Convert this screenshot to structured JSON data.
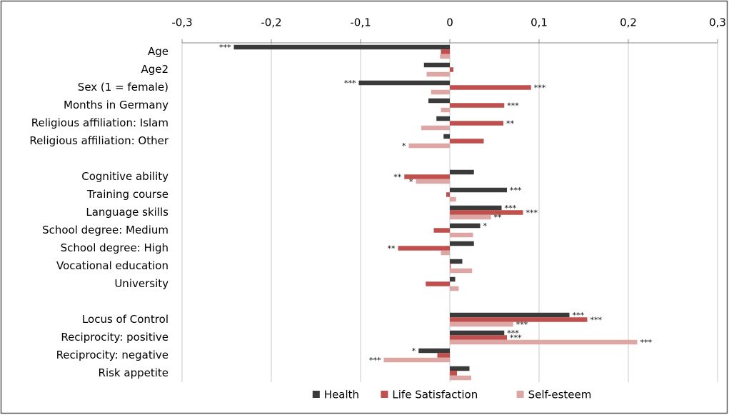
{
  "chart_data": {
    "type": "bar",
    "orientation": "horizontal",
    "categories": [
      "Age",
      "Age2",
      "Sex (1 = female)",
      "Months in Germany",
      "Religious affiliation: Islam",
      "Religious affiliation: Other",
      null,
      "Cognitive ability",
      "Training course",
      "Language skills",
      "School degree: Medium",
      "School degree: High",
      "Vocational education",
      "University",
      null,
      "Locus of Control",
      "Reciprocity: positive",
      "Reciprocity: negative",
      "Risk appetite"
    ],
    "series": [
      {
        "name": "Health",
        "color": "#3a3a3a",
        "values": [
          -0.242,
          -0.029,
          -0.102,
          -0.024,
          -0.015,
          -0.007,
          null,
          0.027,
          0.064,
          0.058,
          0.034,
          0.027,
          0.014,
          0.006,
          null,
          0.134,
          0.061,
          -0.035,
          0.022
        ],
        "annotations": [
          "***",
          null,
          "***",
          null,
          null,
          null,
          null,
          null,
          "***",
          "***",
          "*",
          null,
          null,
          null,
          null,
          "***",
          "***",
          "*",
          null
        ]
      },
      {
        "name": "Life Satisfaction",
        "color": "#c0504d",
        "values": [
          -0.01,
          0.004,
          0.091,
          0.061,
          0.06,
          0.038,
          null,
          -0.051,
          -0.004,
          0.082,
          -0.018,
          -0.058,
          0.001,
          -0.027,
          null,
          0.154,
          0.064,
          -0.014,
          0.008
        ],
        "annotations": [
          null,
          null,
          "***",
          "***",
          "**",
          null,
          null,
          "**",
          null,
          "***",
          null,
          "**",
          null,
          null,
          null,
          "***",
          "***",
          null,
          null
        ]
      },
      {
        "name": "Self-esteem",
        "color": "#dda7a6",
        "values": [
          -0.011,
          -0.026,
          -0.021,
          -0.01,
          -0.032,
          -0.046,
          null,
          -0.038,
          0.007,
          0.046,
          0.026,
          -0.01,
          0.025,
          0.01,
          null,
          0.071,
          0.21,
          -0.074,
          0.024
        ],
        "annotations": [
          null,
          null,
          null,
          null,
          null,
          "*",
          null,
          "*",
          null,
          "**",
          null,
          null,
          null,
          null,
          null,
          "***",
          "***",
          "***",
          null
        ]
      }
    ],
    "xlim": [
      -0.3,
      0.3
    ],
    "xticks": [
      {
        "value": -0.3,
        "label": "-0,3"
      },
      {
        "value": -0.2,
        "label": "-0,2"
      },
      {
        "value": -0.1,
        "label": "-0,1"
      },
      0,
      {
        "value": 0.1,
        "label": "0,1"
      },
      {
        "value": 0.2,
        "label": "0,2"
      },
      {
        "value": 0.3,
        "label": "0,3"
      }
    ],
    "grid": true,
    "legend": "bottom"
  }
}
